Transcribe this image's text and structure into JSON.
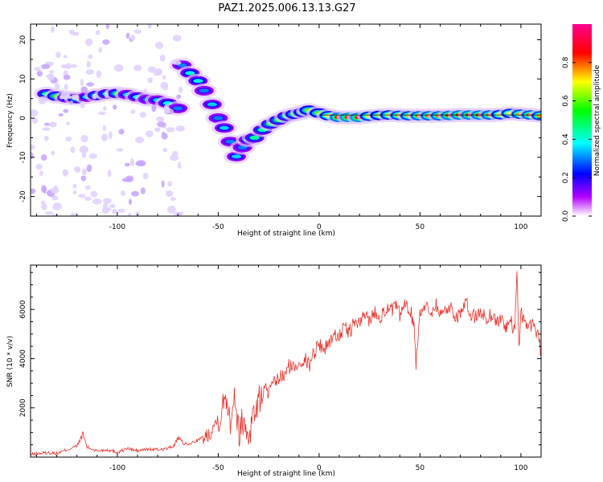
{
  "title": "PAZ1.2025.006.13.13.G27",
  "chart_data": [
    {
      "type": "heatmap",
      "xlabel": "Height of straight line (km)",
      "ylabel": "Frequency (Hz)",
      "xlim": [
        -143,
        110
      ],
      "ylim": [
        -25,
        24
      ],
      "xticks": [
        -100,
        -50,
        0,
        50,
        100
      ],
      "yticks": [
        -20,
        -10,
        0,
        10,
        20
      ],
      "colorbar": {
        "label": "Normalized spectral amplitude",
        "range": [
          0.0,
          1.0
        ],
        "ticks": [
          0.0,
          0.2,
          0.4,
          0.6,
          0.8
        ],
        "colors": [
          "#ffffff",
          "#b400ff",
          "#0000ff",
          "#00ffff",
          "#00ff00",
          "#ffff00",
          "#ff0000",
          "#ff0090"
        ]
      },
      "ridge": [
        {
          "x": -135,
          "y": 6.2,
          "a": 0.45
        },
        {
          "x": -130,
          "y": 5.6,
          "a": 0.55
        },
        {
          "x": -125,
          "y": 5.2,
          "a": 0.4
        },
        {
          "x": -120,
          "y": 5.0,
          "a": 0.5
        },
        {
          "x": -115,
          "y": 5.4,
          "a": 0.35
        },
        {
          "x": -110,
          "y": 5.8,
          "a": 0.5
        },
        {
          "x": -105,
          "y": 6.2,
          "a": 0.45
        },
        {
          "x": -100,
          "y": 6.3,
          "a": 0.5
        },
        {
          "x": -95,
          "y": 6.0,
          "a": 0.35
        },
        {
          "x": -90,
          "y": 5.4,
          "a": 0.4
        },
        {
          "x": -85,
          "y": 4.8,
          "a": 0.3
        },
        {
          "x": -80,
          "y": 4.6,
          "a": 0.35
        },
        {
          "x": -75,
          "y": 3.8,
          "a": 0.4
        },
        {
          "x": -70,
          "y": 2.5,
          "a": 0.3
        },
        {
          "x": -68,
          "y": 13.5,
          "a": 0.3
        },
        {
          "x": -64,
          "y": 11.5,
          "a": 0.4
        },
        {
          "x": -60,
          "y": 9.5,
          "a": 0.4
        },
        {
          "x": -57,
          "y": 7.0,
          "a": 0.3
        },
        {
          "x": -53,
          "y": 3.5,
          "a": 0.35
        },
        {
          "x": -50,
          "y": 0.0,
          "a": 0.3
        },
        {
          "x": -47,
          "y": -2.5,
          "a": 0.35
        },
        {
          "x": -44,
          "y": -6.0,
          "a": 0.3
        },
        {
          "x": -41,
          "y": -9.8,
          "a": 0.35
        },
        {
          "x": -38,
          "y": -7.5,
          "a": 0.3
        },
        {
          "x": -35,
          "y": -5.5,
          "a": 0.4
        },
        {
          "x": -32,
          "y": -5.0,
          "a": 0.45
        },
        {
          "x": -28,
          "y": -3.0,
          "a": 0.45
        },
        {
          "x": -24,
          "y": -1.5,
          "a": 0.5
        },
        {
          "x": -20,
          "y": -0.5,
          "a": 0.5
        },
        {
          "x": -16,
          "y": 0.5,
          "a": 0.5
        },
        {
          "x": -12,
          "y": 1.0,
          "a": 0.55
        },
        {
          "x": -8,
          "y": 1.5,
          "a": 0.55
        },
        {
          "x": -5,
          "y": 2.0,
          "a": 0.6
        },
        {
          "x": 0,
          "y": 1.3,
          "a": 0.6
        },
        {
          "x": 5,
          "y": 0.6,
          "a": 0.7
        },
        {
          "x": 10,
          "y": 0.2,
          "a": 0.85
        },
        {
          "x": 15,
          "y": 0.2,
          "a": 0.9
        },
        {
          "x": 20,
          "y": 0.2,
          "a": 0.9
        },
        {
          "x": 25,
          "y": 0.5,
          "a": 0.7
        },
        {
          "x": 30,
          "y": 0.7,
          "a": 0.65
        },
        {
          "x": 35,
          "y": 0.8,
          "a": 0.7
        },
        {
          "x": 40,
          "y": 0.7,
          "a": 0.75
        },
        {
          "x": 45,
          "y": 0.6,
          "a": 0.75
        },
        {
          "x": 50,
          "y": 0.6,
          "a": 0.8
        },
        {
          "x": 55,
          "y": 0.6,
          "a": 0.8
        },
        {
          "x": 60,
          "y": 0.6,
          "a": 0.8
        },
        {
          "x": 65,
          "y": 0.7,
          "a": 0.85
        },
        {
          "x": 70,
          "y": 0.8,
          "a": 0.85
        },
        {
          "x": 75,
          "y": 0.8,
          "a": 0.85
        },
        {
          "x": 80,
          "y": 0.8,
          "a": 0.85
        },
        {
          "x": 85,
          "y": 0.8,
          "a": 0.8
        },
        {
          "x": 90,
          "y": 0.9,
          "a": 0.7
        },
        {
          "x": 95,
          "y": 1.2,
          "a": 0.7
        },
        {
          "x": 100,
          "y": 1.0,
          "a": 0.75
        },
        {
          "x": 105,
          "y": 0.8,
          "a": 0.8
        },
        {
          "x": 110,
          "y": 0.6,
          "a": 0.75
        }
      ]
    },
    {
      "type": "line",
      "xlabel": "Height of straight line (km)",
      "ylabel": "SNR (10 * v/v)",
      "xlim": [
        -143,
        110
      ],
      "ylim": [
        0,
        7800
      ],
      "xticks": [
        -100,
        -50,
        0,
        50,
        100
      ],
      "yticks": [
        2000,
        4000,
        6000
      ],
      "line_color": "#e8322a",
      "series": [
        {
          "x": [
            -143,
            -135,
            -130,
            -125,
            -120,
            -117,
            -115,
            -110,
            -105,
            -100,
            -95,
            -90,
            -85,
            -80,
            -75,
            -72,
            -70,
            -67,
            -65,
            -60,
            -55,
            -52,
            -50,
            -48,
            -46,
            -44,
            -42,
            -40,
            -38,
            -35,
            -32,
            -30,
            -27,
            -25,
            -22,
            -20,
            -17,
            -15,
            -12,
            -10,
            -7,
            -5,
            -3,
            0,
            3,
            5,
            7,
            10,
            13,
            15,
            18,
            20,
            23,
            25,
            28,
            30,
            33,
            35,
            38,
            40,
            43,
            45,
            47,
            48,
            50,
            53,
            55,
            58,
            60,
            63,
            65,
            68,
            70,
            73,
            75,
            78,
            80,
            83,
            85,
            88,
            90,
            93,
            95,
            97,
            98,
            99,
            100,
            102,
            104,
            106,
            108,
            110
          ],
          "y": [
            100,
            180,
            150,
            300,
            450,
            950,
            400,
            250,
            300,
            200,
            350,
            250,
            320,
            300,
            350,
            450,
            800,
            550,
            500,
            700,
            900,
            1300,
            1600,
            1900,
            2600,
            1500,
            2800,
            1000,
            1500,
            900,
            1900,
            2200,
            2800,
            2600,
            3000,
            3200,
            3300,
            3700,
            3600,
            3900,
            4000,
            3700,
            4200,
            4600,
            4400,
            4700,
            4900,
            5000,
            5200,
            5100,
            5500,
            5400,
            5800,
            5600,
            5900,
            5700,
            6000,
            5900,
            6100,
            5800,
            6200,
            6000,
            5400,
            3800,
            6000,
            6100,
            5900,
            6200,
            5800,
            6000,
            6100,
            5700,
            5900,
            6200,
            5800,
            5700,
            5900,
            5600,
            5800,
            5500,
            5600,
            5300,
            5500,
            5000,
            7800,
            4300,
            5800,
            5600,
            5200,
            5500,
            5100,
            4200
          ]
        }
      ]
    }
  ]
}
